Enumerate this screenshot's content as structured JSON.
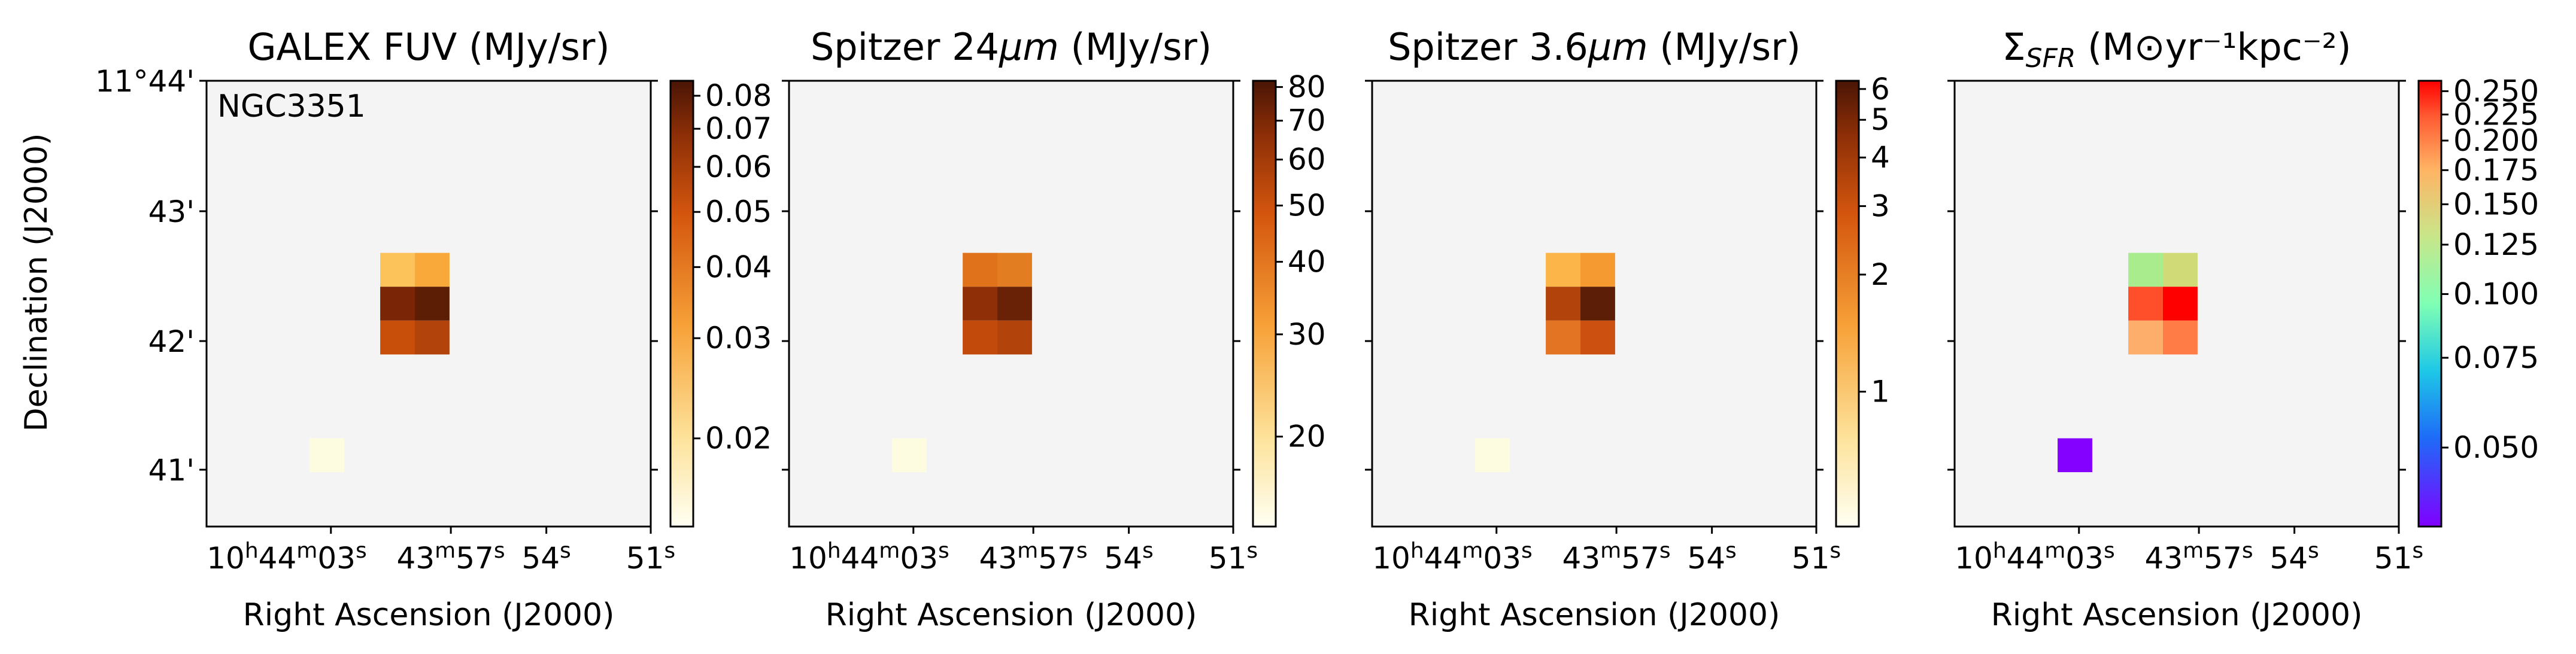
{
  "figure": {
    "ylabel": "Declination (J2000)",
    "xlabel": "Right Ascension (J2000)",
    "dec_ticks": [
      "11°44'",
      "43'",
      "42'",
      "41'"
    ],
    "ra_ticks": [
      {
        "main": "10",
        "sup1": "h",
        "main2": "44",
        "sup2": "m",
        "main3": "03",
        "sup3": "s"
      },
      {
        "main": "43",
        "sup1": "m",
        "main2": "57",
        "sup2": "s",
        "main3": "",
        "sup3": ""
      },
      {
        "main": "54",
        "sup1": "s",
        "main2": "",
        "sup2": "",
        "main3": "",
        "sup3": ""
      },
      {
        "main": "51",
        "sup1": "s",
        "main2": "",
        "sup2": "",
        "main3": "",
        "sup3": ""
      }
    ],
    "background_color": "#f4f4f4",
    "object_label": "NGC3351"
  },
  "chart_data": [
    {
      "type": "heatmap",
      "title": {
        "pre": "GALEX FUV (MJy/sr)",
        "sub": "",
        "post": ""
      },
      "colormap": "afmhot_r",
      "colorbar_ticks": [
        "0.08",
        "0.07",
        "0.06",
        "0.05",
        "0.04",
        "0.03",
        "0.02"
      ],
      "colorbar_values": [
        0.08,
        0.07,
        0.06,
        0.05,
        0.04,
        0.03,
        0.02
      ],
      "colorbar_range": [
        0.014,
        0.085
      ],
      "colorbar_scale": "log",
      "pixels": [
        {
          "ra": "10h43m58.4s",
          "dec": "11°42'30\"",
          "value": 0.036,
          "color": "#fcc35a"
        },
        {
          "ra": "10h43m57.5s",
          "dec": "11°42'30\"",
          "value": 0.039,
          "color": "#f9a93a"
        },
        {
          "ra": "10h43m58.4s",
          "dec": "11°42'15\"",
          "value": 0.075,
          "color": "#7a2606"
        },
        {
          "ra": "10h43m57.5s",
          "dec": "11°42'15\"",
          "value": 0.085,
          "color": "#5d1e06"
        },
        {
          "ra": "10h43m58.4s",
          "dec": "11°42'00\"",
          "value": 0.052,
          "color": "#c74f0a"
        },
        {
          "ra": "10h43m57.5s",
          "dec": "11°42'00\"",
          "value": 0.058,
          "color": "#b2430a"
        },
        {
          "ra": "10h44m01.0s",
          "dec": "11°41'15\"",
          "value": 0.014,
          "color": "#fefce0"
        }
      ]
    },
    {
      "type": "heatmap",
      "title": {
        "pre": "Spitzer 24",
        "sub": "μm",
        "post": " (MJy/sr)"
      },
      "colormap": "afmhot_r",
      "colorbar_ticks": [
        "80",
        "70",
        "60",
        "50",
        "40",
        "30",
        "20"
      ],
      "colorbar_values": [
        80,
        70,
        60,
        50,
        40,
        30,
        20
      ],
      "colorbar_range": [
        14,
        82
      ],
      "colorbar_scale": "log",
      "pixels": [
        {
          "ra": "10h43m58.4s",
          "dec": "11°42'30\"",
          "value": 48,
          "color": "#e0721b"
        },
        {
          "ra": "10h43m57.5s",
          "dec": "11°42'30\"",
          "value": 46,
          "color": "#e37d22"
        },
        {
          "ra": "10h43m58.4s",
          "dec": "11°42'15\"",
          "value": 72,
          "color": "#8e2f07"
        },
        {
          "ra": "10h43m57.5s",
          "dec": "11°42'15\"",
          "value": 82,
          "color": "#6a2206"
        },
        {
          "ra": "10h43m58.4s",
          "dec": "11°42'00\"",
          "value": 58,
          "color": "#c24a0a"
        },
        {
          "ra": "10h43m57.5s",
          "dec": "11°42'00\"",
          "value": 62,
          "color": "#b2430a"
        },
        {
          "ra": "10h44m01.0s",
          "dec": "11°41'15\"",
          "value": 14,
          "color": "#fefce0"
        }
      ]
    },
    {
      "type": "heatmap",
      "title": {
        "pre": "Spitzer 3.6",
        "sub": "μm",
        "post": " (MJy/sr)"
      },
      "colormap": "afmhot_r",
      "colorbar_ticks": [
        "6",
        "5",
        "4",
        "3",
        "2",
        "1"
      ],
      "colorbar_values": [
        6,
        5,
        4,
        3,
        2,
        1
      ],
      "colorbar_range": [
        0.45,
        6.3
      ],
      "colorbar_scale": "log",
      "pixels": [
        {
          "ra": "10h43m58.4s",
          "dec": "11°42'30\"",
          "value": 2.0,
          "color": "#fbb548"
        },
        {
          "ra": "10h43m57.5s",
          "dec": "11°42'30\"",
          "value": 2.4,
          "color": "#f59a30"
        },
        {
          "ra": "10h43m58.4s",
          "dec": "11°42'15\"",
          "value": 4.7,
          "color": "#b2430a"
        },
        {
          "ra": "10h43m57.5s",
          "dec": "11°42'15\"",
          "value": 6.2,
          "color": "#5c1e06"
        },
        {
          "ra": "10h43m58.4s",
          "dec": "11°42'00\"",
          "value": 3.0,
          "color": "#e37424"
        },
        {
          "ra": "10h43m57.5s",
          "dec": "11°42'00\"",
          "value": 4.0,
          "color": "#cc5010"
        },
        {
          "ra": "10h44m01.0s",
          "dec": "11°41'15\"",
          "value": 0.45,
          "color": "#fefce0"
        }
      ]
    },
    {
      "type": "heatmap",
      "title": {
        "pre": "Σ",
        "sub": "SFR",
        "post": " (M⊙yr⁻¹kpc⁻²)"
      },
      "colormap": "rainbow",
      "colorbar_ticks": [
        "0.250",
        "0.225",
        "0.200",
        "0.175",
        "0.150",
        "0.125",
        "0.100",
        "0.075",
        "0.050"
      ],
      "colorbar_values": [
        0.25,
        0.225,
        0.2,
        0.175,
        0.15,
        0.125,
        0.1,
        0.075,
        0.05
      ],
      "colorbar_range": [
        0.035,
        0.262
      ],
      "colorbar_scale": "log",
      "pixels": [
        {
          "ra": "10h43m58.4s",
          "dec": "11°42'30\"",
          "value": 0.125,
          "color": "#a8ec8e"
        },
        {
          "ra": "10h43m57.5s",
          "dec": "11°42'30\"",
          "value": 0.14,
          "color": "#d0db78"
        },
        {
          "ra": "10h43m58.4s",
          "dec": "11°42'15\"",
          "value": 0.22,
          "color": "#ff4e2a"
        },
        {
          "ra": "10h43m57.5s",
          "dec": "11°42'15\"",
          "value": 0.255,
          "color": "#ff0000"
        },
        {
          "ra": "10h43m58.4s",
          "dec": "11°42'00\"",
          "value": 0.165,
          "color": "#fcae6a"
        },
        {
          "ra": "10h43m57.5s",
          "dec": "11°42'00\"",
          "value": 0.19,
          "color": "#ff7c46"
        },
        {
          "ra": "10h44m01.0s",
          "dec": "11°41'15\"",
          "value": 0.036,
          "color": "#8400ff"
        }
      ]
    }
  ]
}
